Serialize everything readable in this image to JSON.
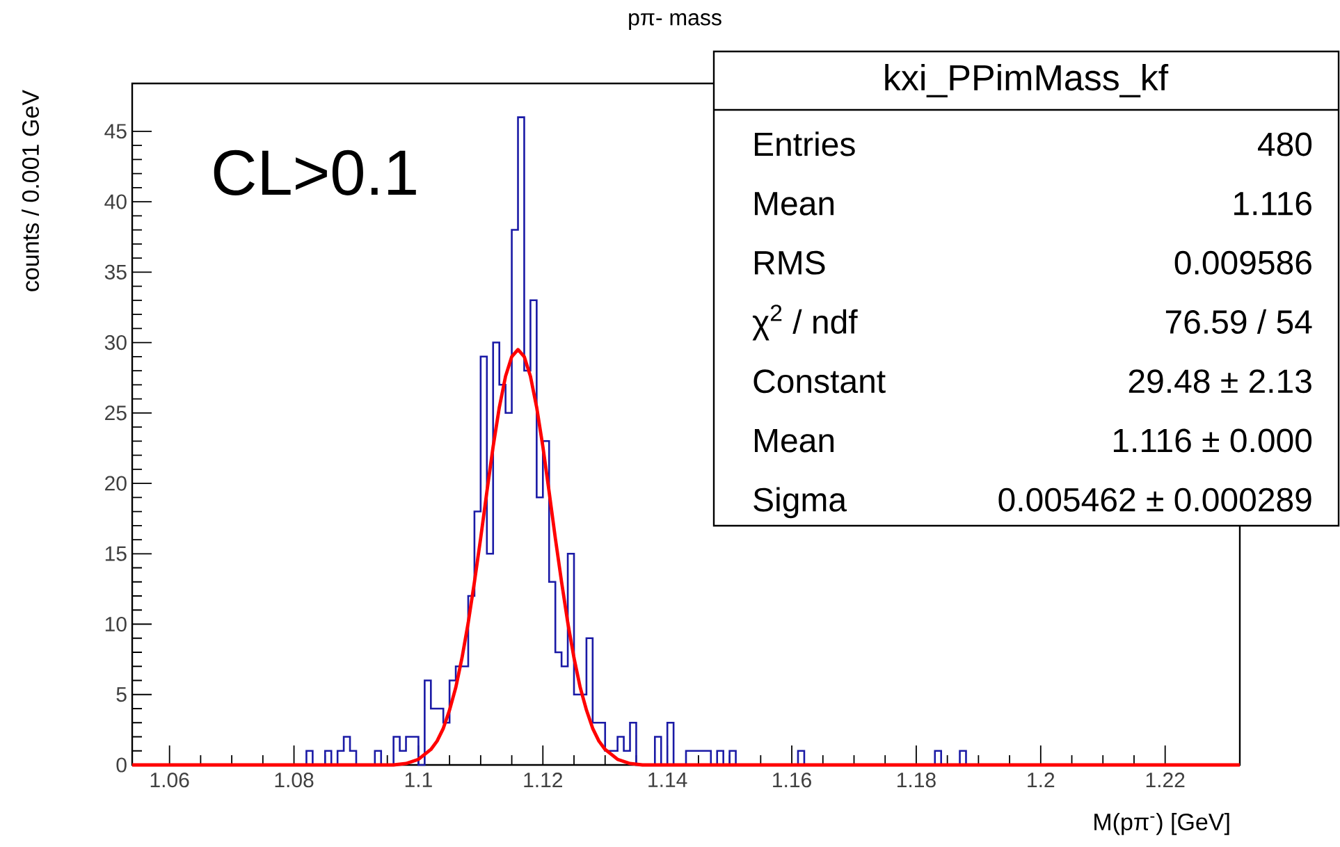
{
  "chart_data": {
    "type": "histogram",
    "title": "pπ- mass",
    "xlabel": "M(pπ$^{-}$) [GeV]",
    "ylabel": "counts / 0.001 GeV",
    "xlim": [
      1.054,
      1.232
    ],
    "ylim": [
      0,
      48.4
    ],
    "xticks": [
      1.06,
      1.08,
      1.1,
      1.12,
      1.14,
      1.16,
      1.18,
      1.2,
      1.22
    ],
    "yticks": [
      0,
      5,
      10,
      15,
      20,
      25,
      30,
      35,
      40,
      45
    ],
    "annotations": [
      "CL>0.1",
      "kxi_PPimMass_kf",
      "Entries",
      "480",
      "Mean",
      "1.116",
      "RMS",
      "0.009586",
      "χ$^{2}$ / ndf",
      "76.59 / 54",
      "Constant",
      "29.48 ± 2.13",
      "Mean",
      "1.116 ± 0.000",
      "Sigma",
      "0.005462 ± 0.000289"
    ],
    "series": [
      {
        "color": "#1a1aa6",
        "bins": [
          1.054,
          1.055,
          1.056,
          1.057,
          1.058,
          1.059,
          1.06,
          1.061,
          1.062,
          1.063,
          1.064,
          1.065,
          1.066,
          1.067,
          1.068,
          1.069,
          1.07,
          1.071,
          1.072,
          1.073,
          1.074,
          1.075,
          1.076,
          1.077,
          1.078,
          1.079,
          1.08,
          1.081,
          1.082,
          1.083,
          1.084,
          1.085,
          1.086,
          1.087,
          1.088,
          1.089,
          1.09,
          1.091,
          1.092,
          1.093,
          1.094,
          1.095,
          1.096,
          1.097,
          1.098,
          1.099,
          1.1,
          1.101,
          1.102,
          1.103,
          1.104,
          1.105,
          1.106,
          1.107,
          1.108,
          1.109,
          1.11,
          1.111,
          1.112,
          1.113,
          1.114,
          1.115,
          1.116,
          1.117,
          1.118,
          1.119,
          1.12,
          1.121,
          1.122,
          1.123,
          1.124,
          1.125,
          1.126,
          1.127,
          1.128,
          1.129,
          1.13,
          1.131,
          1.132,
          1.133,
          1.134,
          1.135,
          1.136,
          1.137,
          1.138,
          1.139,
          1.14,
          1.141,
          1.142,
          1.143,
          1.144,
          1.145,
          1.146,
          1.147,
          1.148,
          1.149,
          1.15,
          1.151,
          1.152,
          1.153,
          1.154,
          1.155,
          1.156,
          1.157,
          1.158,
          1.159,
          1.16,
          1.161,
          1.162,
          1.163,
          1.164,
          1.165,
          1.166,
          1.167,
          1.168,
          1.169,
          1.17,
          1.171,
          1.172,
          1.173,
          1.174,
          1.175,
          1.176,
          1.177,
          1.178,
          1.179,
          1.18,
          1.181,
          1.182,
          1.183,
          1.184,
          1.185,
          1.186,
          1.187,
          1.188,
          1.189,
          1.19,
          1.191,
          1.192,
          1.193,
          1.194,
          1.195,
          1.196,
          1.197,
          1.198,
          1.199,
          1.2,
          1.201,
          1.202,
          1.203,
          1.204,
          1.205,
          1.206,
          1.207,
          1.208,
          1.209,
          1.21,
          1.211,
          1.212,
          1.213,
          1.214,
          1.215,
          1.216,
          1.217,
          1.218,
          1.219,
          1.22,
          1.221,
          1.222,
          1.223,
          1.224,
          1.225,
          1.226,
          1.227,
          1.228,
          1.229,
          1.23,
          1.231,
          1.232
        ],
        "values": [
          0,
          0,
          0,
          0,
          0,
          0,
          0,
          0,
          0,
          0,
          0,
          0,
          0,
          0,
          0,
          0,
          0,
          0,
          0,
          0,
          0,
          0,
          0,
          0,
          0,
          0,
          0,
          0,
          1,
          0,
          0,
          1,
          0,
          1,
          2,
          1,
          0,
          0,
          0,
          1,
          0,
          0,
          2,
          1,
          2,
          2,
          0,
          6,
          4,
          4,
          3,
          6,
          7,
          7,
          12,
          18,
          29,
          15,
          30,
          27,
          25,
          38,
          46,
          28,
          33,
          19,
          23,
          13,
          8,
          7,
          15,
          5,
          5,
          9,
          3,
          3,
          1,
          1,
          2,
          1,
          3,
          0,
          0,
          0,
          2,
          0,
          3,
          0,
          0,
          1,
          1,
          1,
          1,
          0,
          1,
          0,
          1,
          0,
          0,
          0,
          0,
          0,
          0,
          0,
          0,
          0,
          0,
          1,
          0,
          0,
          0,
          0,
          0,
          0,
          0,
          0,
          0,
          0,
          0,
          0,
          0,
          0,
          0,
          0,
          0,
          0,
          0,
          0,
          0,
          1,
          0,
          0,
          0,
          1,
          0,
          0,
          0,
          0,
          0,
          0,
          0,
          0,
          0,
          0,
          0,
          0,
          0,
          0,
          0,
          0,
          0,
          0,
          0,
          0,
          0,
          0,
          0,
          0,
          0,
          0,
          0,
          0,
          0,
          0,
          0,
          0,
          0,
          0,
          0,
          0,
          0,
          0,
          0,
          0,
          0,
          0,
          0,
          0
        ]
      },
      {
        "type": "line",
        "color": "#ff0000",
        "x": [
          1.054,
          1.096,
          1.098,
          1.1,
          1.102,
          1.103,
          1.104,
          1.105,
          1.106,
          1.107,
          1.108,
          1.109,
          1.11,
          1.111,
          1.112,
          1.113,
          1.114,
          1.115,
          1.116,
          1.117,
          1.118,
          1.119,
          1.12,
          1.121,
          1.122,
          1.123,
          1.124,
          1.125,
          1.126,
          1.127,
          1.128,
          1.129,
          1.13,
          1.132,
          1.134,
          1.136,
          1.232
        ],
        "values": [
          0,
          0,
          0.1,
          0.4,
          1.1,
          1.7,
          2.6,
          3.9,
          5.5,
          7.6,
          10.1,
          13.0,
          16.1,
          19.4,
          22.6,
          25.4,
          27.6,
          29.0,
          29.5,
          29.0,
          27.6,
          25.4,
          22.6,
          19.4,
          16.1,
          13.0,
          10.1,
          7.6,
          5.5,
          3.9,
          2.6,
          1.7,
          1.1,
          0.4,
          0.1,
          0,
          0
        ]
      }
    ]
  }
}
